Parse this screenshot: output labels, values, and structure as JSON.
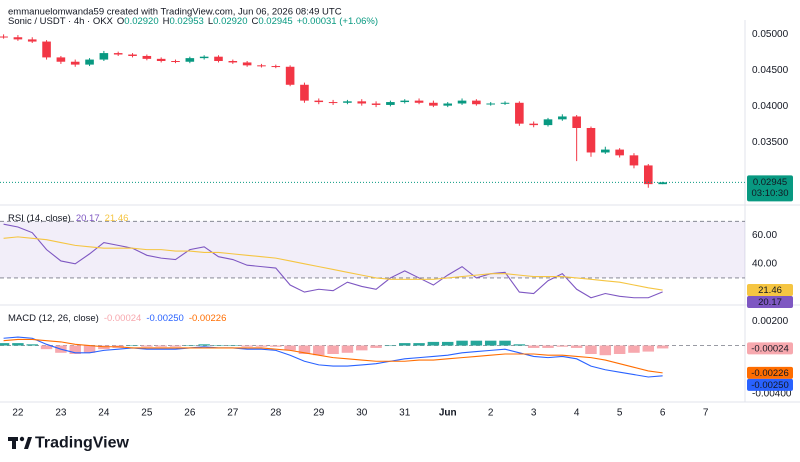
{
  "header": {
    "caption": "emmanuelomwanda59 created with TradingView.com, Jun 06, 2026 08:49 UTC"
  },
  "footer": {
    "brand": "TradingView"
  },
  "chart_data": [
    {
      "type": "candlestick",
      "title": "Sonic / USDT · 4h · OKX",
      "ohlc": [
        "O",
        "0.02920",
        "H",
        "0.02953",
        "L",
        "0.02920",
        "C",
        "0.02945"
      ],
      "change": "+0.00031 (+1.06%)",
      "x": [
        -8,
        0,
        8,
        16,
        24,
        32,
        40,
        48,
        56,
        64,
        72,
        80,
        88,
        96,
        104,
        112,
        120,
        128,
        136,
        144,
        152,
        160,
        168,
        176,
        184,
        192,
        200,
        208,
        216,
        224,
        232,
        240,
        248,
        256,
        264,
        272,
        280,
        288,
        296,
        304,
        312,
        320,
        328,
        336,
        344,
        352,
        360
      ],
      "open": [
        0.0497,
        0.0496,
        0.0493,
        0.049,
        0.0468,
        0.0462,
        0.0458,
        0.0465,
        0.0474,
        0.0472,
        0.047,
        0.0466,
        0.0463,
        0.0462,
        0.0467,
        0.0469,
        0.0463,
        0.0461,
        0.0457,
        0.0456,
        0.0455,
        0.043,
        0.0408,
        0.0406,
        0.0405,
        0.0407,
        0.0404,
        0.0402,
        0.0406,
        0.0408,
        0.0405,
        0.0401,
        0.0404,
        0.0408,
        0.0403,
        0.0404,
        0.0405,
        0.0376,
        0.0374,
        0.0382,
        0.0386,
        0.037,
        0.0336,
        0.034,
        0.0332,
        0.0318,
        0.0292
      ],
      "high": [
        0.05,
        0.0499,
        0.0496,
        0.0492,
        0.047,
        0.0465,
        0.0467,
        0.0477,
        0.0476,
        0.0474,
        0.0472,
        0.0468,
        0.0465,
        0.0469,
        0.0471,
        0.0471,
        0.0465,
        0.0463,
        0.0459,
        0.0458,
        0.0457,
        0.0433,
        0.0411,
        0.0409,
        0.0409,
        0.041,
        0.0407,
        0.0408,
        0.041,
        0.0411,
        0.0408,
        0.0406,
        0.0411,
        0.041,
        0.0406,
        0.0407,
        0.0407,
        0.0379,
        0.0384,
        0.0389,
        0.0388,
        0.0372,
        0.0344,
        0.0342,
        0.0335,
        0.032,
        0.02953
      ],
      "low": [
        0.0494,
        0.0491,
        0.0488,
        0.0465,
        0.0459,
        0.0455,
        0.0456,
        0.0463,
        0.047,
        0.0468,
        0.0464,
        0.0461,
        0.046,
        0.046,
        0.0465,
        0.0461,
        0.0459,
        0.0455,
        0.0454,
        0.0453,
        0.0428,
        0.0405,
        0.0403,
        0.0402,
        0.0403,
        0.0401,
        0.0399,
        0.04,
        0.0404,
        0.0403,
        0.0399,
        0.0399,
        0.0402,
        0.0401,
        0.0401,
        0.0402,
        0.0373,
        0.0371,
        0.0372,
        0.038,
        0.0324,
        0.033,
        0.0334,
        0.0329,
        0.0314,
        0.0287,
        0.0292
      ],
      "close": [
        0.0496,
        0.0493,
        0.049,
        0.0468,
        0.0462,
        0.0458,
        0.0465,
        0.0474,
        0.0472,
        0.047,
        0.0466,
        0.0463,
        0.0462,
        0.0467,
        0.0469,
        0.0463,
        0.0461,
        0.0457,
        0.0456,
        0.0455,
        0.043,
        0.0408,
        0.0406,
        0.0405,
        0.0407,
        0.0404,
        0.0402,
        0.0406,
        0.0408,
        0.0405,
        0.0401,
        0.0404,
        0.0408,
        0.0403,
        0.0404,
        0.0405,
        0.0376,
        0.0374,
        0.0382,
        0.0386,
        0.037,
        0.0336,
        0.034,
        0.0332,
        0.0318,
        0.0292,
        0.02945
      ],
      "up_color": "#089981",
      "down_color": "#f23645",
      "last_label": "0.02945",
      "countdown": "03:10:30",
      "xlim": [
        -10,
        406
      ],
      "xticks": [
        {
          "value": 0,
          "label": "22"
        },
        {
          "value": 24,
          "label": "23"
        },
        {
          "value": 48,
          "label": "24"
        },
        {
          "value": 72,
          "label": "25"
        },
        {
          "value": 96,
          "label": "26"
        },
        {
          "value": 120,
          "label": "27"
        },
        {
          "value": 144,
          "label": "28"
        },
        {
          "value": 168,
          "label": "29"
        },
        {
          "value": 192,
          "label": "30"
        },
        {
          "value": 216,
          "label": "31"
        },
        {
          "value": 240,
          "label": "Jun"
        },
        {
          "value": 264,
          "label": "2"
        },
        {
          "value": 288,
          "label": "3"
        },
        {
          "value": 312,
          "label": "4"
        },
        {
          "value": 336,
          "label": "5"
        },
        {
          "value": 360,
          "label": "6"
        },
        {
          "value": 384,
          "label": "7"
        }
      ],
      "ylim": [
        0.027,
        0.0513
      ],
      "yticks": [
        {
          "value": 0.05,
          "label": "0.05000"
        },
        {
          "value": 0.045,
          "label": "0.04500"
        },
        {
          "value": 0.04,
          "label": "0.04000"
        },
        {
          "value": 0.035,
          "label": "0.03500"
        }
      ],
      "grid": false
    },
    {
      "type": "line",
      "title": "RSI (14, close)",
      "series": [
        {
          "color": "#7e57c2",
          "last_label": "20.17",
          "values": [
            68,
            66,
            62,
            50,
            42,
            40,
            47,
            55,
            53,
            51,
            46,
            44,
            43,
            50,
            52,
            45,
            43,
            39,
            38,
            37,
            25,
            20,
            22,
            21,
            27,
            24,
            22,
            30,
            35,
            30,
            25,
            32,
            38,
            30,
            33,
            34,
            20,
            19,
            28,
            33,
            22,
            16,
            19,
            17,
            16,
            16,
            20.17
          ]
        },
        {
          "color": "#f5c542",
          "last_label": "21.46",
          "values": [
            58,
            59,
            58,
            57,
            55,
            53,
            52,
            51,
            51,
            51,
            50,
            50,
            49,
            49,
            48,
            48,
            47,
            46,
            45,
            44,
            42,
            40,
            38,
            36,
            34,
            32,
            30,
            29,
            29,
            29,
            29,
            30,
            31,
            32,
            33,
            33,
            32,
            31,
            31,
            31,
            30,
            29,
            28,
            27,
            25,
            23,
            21.46
          ]
        }
      ],
      "bands": [
        70,
        30
      ],
      "band_color": "#7e57c2",
      "ylim": [
        13,
        78
      ],
      "yticks": [
        {
          "value": 60,
          "label": "60.00"
        },
        {
          "value": 40,
          "label": "40.00"
        }
      ]
    },
    {
      "type": "macd",
      "title": "MACD (12, 26, close)",
      "series": [
        {
          "style": "histogram",
          "color": "#f7a8ae",
          "up_color": "#26a69a",
          "last_label": "-0.00024",
          "values": [
            0.0002,
            0.0002,
            0.0001,
            -0.0003,
            -0.0006,
            -0.0007,
            -0.0006,
            -0.0003,
            -0.0002,
            0,
            -0.0001,
            -0.0001,
            -0.0001,
            0,
            0.0001,
            0,
            0,
            -0.0001,
            -0.0001,
            -0.0001,
            -0.0004,
            -0.0007,
            -0.0008,
            -0.0007,
            -0.0006,
            -0.0004,
            -0.0002,
            0,
            0.0002,
            0.0002,
            0.0003,
            0.0003,
            0.0004,
            0.0004,
            0.0004,
            0.0004,
            0.0001,
            -0.0002,
            -0.0002,
            -0.0001,
            -0.0002,
            -0.0007,
            -0.0008,
            -0.0007,
            -0.0006,
            -0.0005,
            -0.00024
          ]
        },
        {
          "style": "line",
          "color": "#2962ff",
          "last_label": "-0.00250",
          "values": [
            0.0006,
            0.0007,
            0.0006,
            0.0001,
            -0.0003,
            -0.0006,
            -0.0006,
            -0.0004,
            -0.0003,
            -0.0002,
            -0.0003,
            -0.0003,
            -0.0003,
            -0.0002,
            -0.0001,
            -0.0002,
            -0.0002,
            -0.0003,
            -0.0003,
            -0.0004,
            -0.0008,
            -0.0013,
            -0.0016,
            -0.0017,
            -0.0017,
            -0.0016,
            -0.0015,
            -0.0013,
            -0.0011,
            -0.001,
            -0.0009,
            -0.0008,
            -0.0006,
            -0.0005,
            -0.0004,
            -0.0003,
            -0.0006,
            -0.0009,
            -0.001,
            -0.0009,
            -0.0011,
            -0.0017,
            -0.002,
            -0.0022,
            -0.0024,
            -0.0026,
            -0.0025
          ]
        },
        {
          "style": "line",
          "color": "#ff6d00",
          "last_label": "-0.00226",
          "values": [
            0.0004,
            0.0005,
            0.0005,
            0.0004,
            0.0003,
            0.0001,
            0,
            -0.0001,
            -0.0001,
            -0.0002,
            -0.0002,
            -0.0002,
            -0.0002,
            -0.0002,
            -0.0002,
            -0.0002,
            -0.0002,
            -0.0002,
            -0.0002,
            -0.0003,
            -0.0004,
            -0.0006,
            -0.0008,
            -0.001,
            -0.0011,
            -0.0012,
            -0.0013,
            -0.0013,
            -0.0013,
            -0.0012,
            -0.0012,
            -0.0011,
            -0.001,
            -0.0009,
            -0.0008,
            -0.0007,
            -0.0007,
            -0.0007,
            -0.0008,
            -0.0008,
            -0.0009,
            -0.001,
            -0.0012,
            -0.0015,
            -0.0018,
            -0.0021,
            -0.00226
          ]
        }
      ],
      "ylim": [
        -0.0045,
        0.0031
      ],
      "yticks": [
        {
          "value": 0.002,
          "label": "0.00200"
        },
        {
          "value": -0.004,
          "label": "-0.00400"
        }
      ]
    }
  ]
}
